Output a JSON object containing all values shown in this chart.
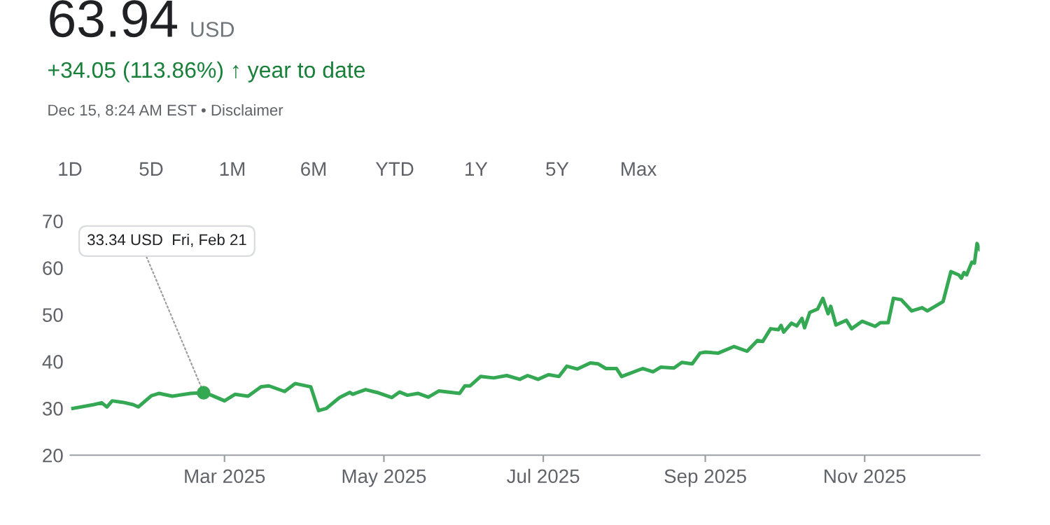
{
  "chart_data": {
    "type": "line",
    "title": "63.94 USD",
    "subtitle": "+34.05 (113.86%) ↑ year to date",
    "annotations": [
      "Dec 15, 8:24 AM EST • Disclaimer",
      "1D",
      "5D",
      "1M",
      "6M",
      "YTD",
      "1Y",
      "5Y",
      "Max",
      {
        "text": "33.34 USD  Fri, Feb 21",
        "x": "2025-02-21",
        "y": 33.34
      }
    ],
    "x": [
      "2025-01-02",
      "2025-01-10",
      "2025-01-13",
      "2025-01-15",
      "2025-01-17",
      "2025-01-21",
      "2025-01-25",
      "2025-01-27",
      "2025-02-01",
      "2025-02-04",
      "2025-02-09",
      "2025-02-16",
      "2025-02-21",
      "2025-02-24",
      "2025-03-01",
      "2025-03-05",
      "2025-03-10",
      "2025-03-15",
      "2025-03-18",
      "2025-03-24",
      "2025-03-28",
      "2025-04-03",
      "2025-04-06",
      "2025-04-09",
      "2025-04-14",
      "2025-04-18",
      "2025-04-19",
      "2025-04-24",
      "2025-04-29",
      "2025-05-04",
      "2025-05-07",
      "2025-05-10",
      "2025-05-14",
      "2025-05-18",
      "2025-05-22",
      "2025-05-30",
      "2025-06-01",
      "2025-06-03",
      "2025-06-07",
      "2025-06-12",
      "2025-06-17",
      "2025-06-22",
      "2025-06-25",
      "2025-06-29",
      "2025-07-03",
      "2025-07-07",
      "2025-07-10",
      "2025-07-14",
      "2025-07-19",
      "2025-07-22",
      "2025-07-25",
      "2025-07-29",
      "2025-07-31",
      "2025-08-08",
      "2025-08-12",
      "2025-08-15",
      "2025-08-20",
      "2025-08-23",
      "2025-08-27",
      "2025-08-30",
      "2025-09-01",
      "2025-09-06",
      "2025-09-12",
      "2025-09-17",
      "2025-09-21",
      "2025-09-23",
      "2025-09-26",
      "2025-09-29",
      "2025-09-30",
      "2025-10-01",
      "2025-10-04",
      "2025-10-06",
      "2025-10-08",
      "2025-10-09",
      "2025-10-11",
      "2025-10-14",
      "2025-10-16",
      "2025-10-18",
      "2025-10-19",
      "2025-10-21",
      "2025-10-25",
      "2025-10-27",
      "2025-10-31",
      "2025-11-05",
      "2025-11-07",
      "2025-11-10",
      "2025-11-12",
      "2025-11-15",
      "2025-11-19",
      "2025-11-23",
      "2025-11-25",
      "2025-12-01",
      "2025-12-04",
      "2025-12-07",
      "2025-12-08",
      "2025-12-09",
      "2025-12-10",
      "2025-12-12",
      "2025-12-13",
      "2025-12-14",
      "2025-12-15"
    ],
    "series": [
      {
        "color": "#34a853",
        "values": [
          30.0,
          30.8,
          31.2,
          30.3,
          31.6,
          31.3,
          30.8,
          30.3,
          32.7,
          33.2,
          32.6,
          33.2,
          33.34,
          32.8,
          31.6,
          33.0,
          32.6,
          34.6,
          34.8,
          33.6,
          35.3,
          34.6,
          29.5,
          30.0,
          32.3,
          33.4,
          33.0,
          34.0,
          33.3,
          32.3,
          33.5,
          32.8,
          33.2,
          32.4,
          33.7,
          33.2,
          34.8,
          34.8,
          36.8,
          36.5,
          37.0,
          36.2,
          37.0,
          36.2,
          37.2,
          36.8,
          39.0,
          38.4,
          39.7,
          39.5,
          38.5,
          38.5,
          36.8,
          38.5,
          37.8,
          38.8,
          38.6,
          39.8,
          39.5,
          41.8,
          42.0,
          41.8,
          43.2,
          42.2,
          44.5,
          44.3,
          47.0,
          46.8,
          47.7,
          46.3,
          48.2,
          47.6,
          49.2,
          47.2,
          50.5,
          51.2,
          53.5,
          50.2,
          51.8,
          47.8,
          48.8,
          47.0,
          48.6,
          47.5,
          48.3,
          48.3,
          53.5,
          53.2,
          50.8,
          51.5,
          50.8,
          52.8,
          59.2,
          58.5,
          57.8,
          59.0,
          58.5,
          61.2,
          61.0,
          65.2,
          63.94
        ]
      }
    ],
    "xlim": [
      "2025-01-01",
      "2025-12-15"
    ],
    "xticks": [
      {
        "value": "2025-03-01",
        "label": "Mar 2025"
      },
      {
        "value": "2025-05-01",
        "label": "May 2025"
      },
      {
        "value": "2025-07-01",
        "label": "Jul 2025"
      },
      {
        "value": "2025-09-01",
        "label": "Sep 2025"
      },
      {
        "value": "2025-11-01",
        "label": "Nov 2025"
      }
    ],
    "ylim": [
      20,
      70
    ],
    "yticks": [
      20,
      30,
      40,
      50,
      60,
      70
    ],
    "grid": false,
    "legend": false,
    "marker": "none",
    "line_style": "solid"
  }
}
